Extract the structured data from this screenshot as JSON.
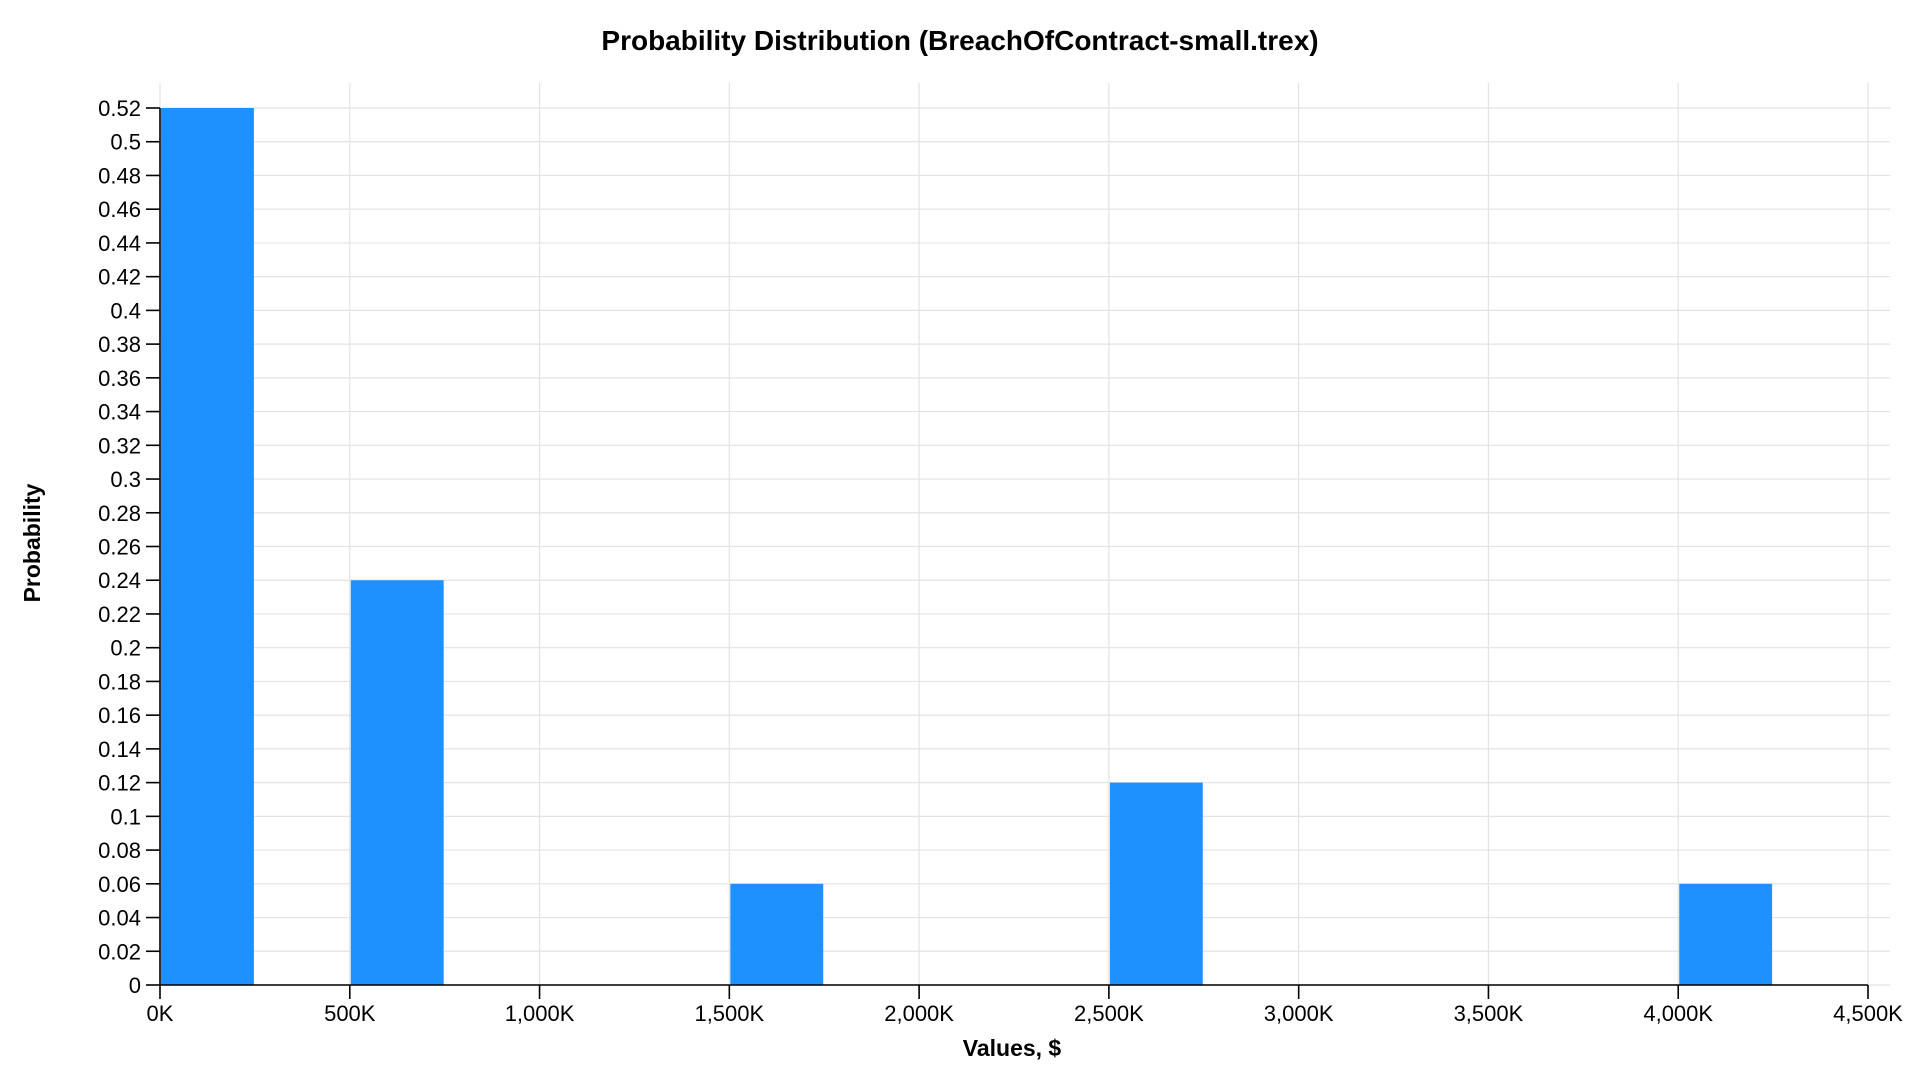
{
  "chart_data": {
    "type": "bar",
    "title": "Probability Distribution (BreachOfContract-small.trex)",
    "xlabel": "Values, $",
    "ylabel": "Probability",
    "bar_color": "#1e90ff",
    "xlim": [
      0,
      4500000
    ],
    "ylim": [
      0,
      0.52
    ],
    "x_tick_values": [
      0,
      500000,
      1000000,
      1500000,
      2000000,
      2500000,
      3000000,
      3500000,
      4000000,
      4500000
    ],
    "x_tick_labels": [
      "0K",
      "500K",
      "1,000K",
      "1,500K",
      "2,000K",
      "2,500K",
      "3,000K",
      "3,500K",
      "4,000K",
      "4,500K"
    ],
    "y_tick_values": [
      0,
      0.02,
      0.04,
      0.06,
      0.08,
      0.1,
      0.12,
      0.14,
      0.16,
      0.18,
      0.2,
      0.22,
      0.24,
      0.26,
      0.28,
      0.3,
      0.32,
      0.34,
      0.36,
      0.38,
      0.4,
      0.42,
      0.44,
      0.46,
      0.48,
      0.5,
      0.52
    ],
    "y_tick_labels": [
      "0",
      "0.02",
      "0.04",
      "0.06",
      "0.08",
      "0.1",
      "0.12",
      "0.14",
      "0.16",
      "0.18",
      "0.2",
      "0.22",
      "0.24",
      "0.26",
      "0.28",
      "0.3",
      "0.32",
      "0.34",
      "0.36",
      "0.38",
      "0.4",
      "0.42",
      "0.44",
      "0.46",
      "0.48",
      "0.5",
      "0.52"
    ],
    "grid": true,
    "bins": [
      {
        "x_start": 0,
        "x_end": 250000,
        "value": 0.52
      },
      {
        "x_start": 500000,
        "x_end": 750000,
        "value": 0.24
      },
      {
        "x_start": 1500000,
        "x_end": 1750000,
        "value": 0.06
      },
      {
        "x_start": 2500000,
        "x_end": 2750000,
        "value": 0.12
      },
      {
        "x_start": 4000000,
        "x_end": 4250000,
        "value": 0.06
      }
    ]
  }
}
